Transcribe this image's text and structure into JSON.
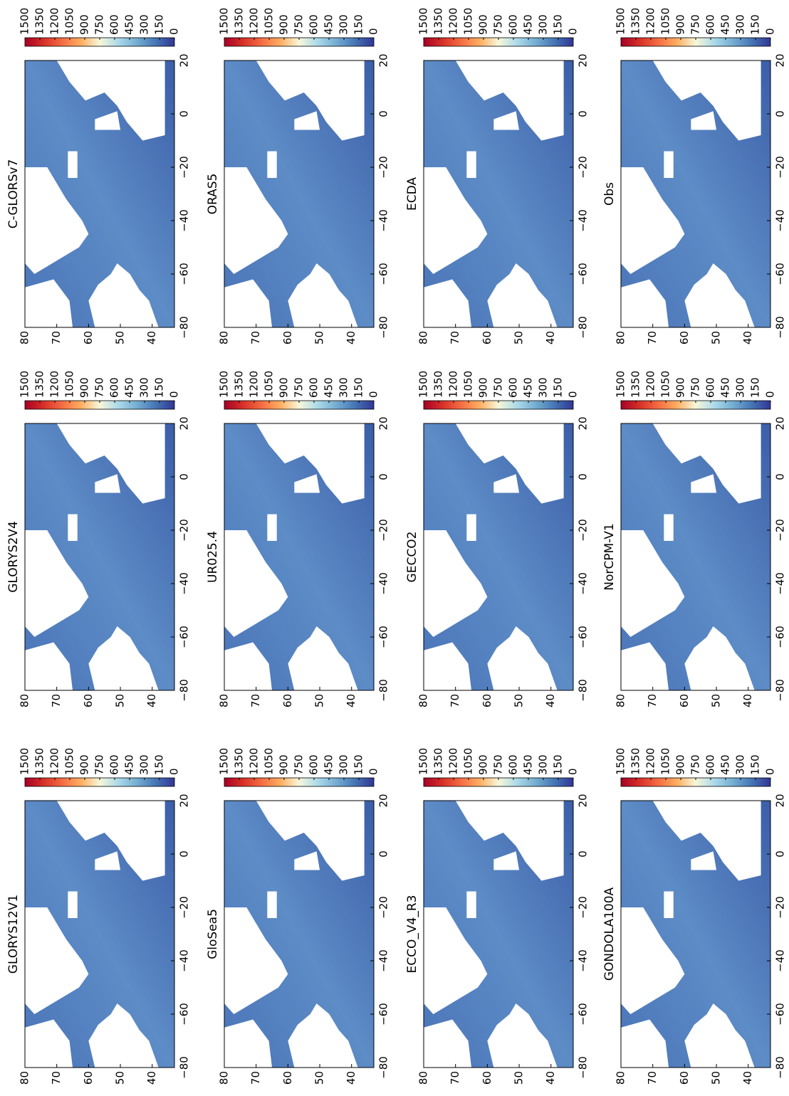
{
  "chart_data": [
    {
      "type": "heatmap",
      "title": "GLORYS12V1",
      "xlim": [
        -80,
        20
      ],
      "ylim": [
        33,
        80
      ],
      "xticks": [
        {
          "value": -80,
          "label": "−80"
        },
        {
          "value": -60,
          "label": "−60"
        },
        {
          "value": -40,
          "label": "−40"
        },
        {
          "value": -20,
          "label": "−20"
        },
        0,
        20
      ],
      "yticks": [
        40,
        50,
        60,
        70,
        80
      ],
      "clim": [
        0,
        1500
      ],
      "cticks": [
        0,
        150,
        300,
        450,
        600,
        750,
        900,
        1050,
        1200,
        1350,
        1500
      ],
      "colorscale": [
        "#313695",
        "#4575b4",
        "#74add1",
        "#abd9e9",
        "#f7f7d9",
        "#fdae61",
        "#f46d43",
        "#d73027",
        "#a50026"
      ]
    },
    {
      "type": "heatmap",
      "title": "GLORYS2V4",
      "xlim": [
        -80,
        20
      ],
      "ylim": [
        33,
        80
      ],
      "xticks": [
        {
          "value": -80,
          "label": "−80"
        },
        {
          "value": -60,
          "label": "−60"
        },
        {
          "value": -40,
          "label": "−40"
        },
        {
          "value": -20,
          "label": "−20"
        },
        0,
        20
      ],
      "yticks": [
        40,
        50,
        60,
        70,
        80
      ],
      "clim": [
        0,
        1500
      ],
      "cticks": [
        0,
        150,
        300,
        450,
        600,
        750,
        900,
        1050,
        1200,
        1350,
        1500
      ],
      "colorscale": [
        "#313695",
        "#4575b4",
        "#74add1",
        "#abd9e9",
        "#f7f7d9",
        "#fdae61",
        "#f46d43",
        "#d73027",
        "#a50026"
      ]
    },
    {
      "type": "heatmap",
      "title": "C-GLORSv7",
      "xlim": [
        -80,
        20
      ],
      "ylim": [
        33,
        80
      ],
      "xticks": [
        {
          "value": -80,
          "label": "−80"
        },
        {
          "value": -60,
          "label": "−60"
        },
        {
          "value": -40,
          "label": "−40"
        },
        {
          "value": -20,
          "label": "−20"
        },
        0,
        20
      ],
      "yticks": [
        40,
        50,
        60,
        70,
        80
      ],
      "clim": [
        0,
        1500
      ],
      "cticks": [
        0,
        150,
        300,
        450,
        600,
        750,
        900,
        1050,
        1200,
        1350,
        1500
      ],
      "colorscale": [
        "#313695",
        "#4575b4",
        "#74add1",
        "#abd9e9",
        "#f7f7d9",
        "#fdae61",
        "#f46d43",
        "#d73027",
        "#a50026"
      ]
    },
    {
      "type": "heatmap",
      "title": "GloSea5",
      "xlim": [
        -80,
        20
      ],
      "ylim": [
        33,
        80
      ],
      "xticks": [
        {
          "value": -80,
          "label": "−80"
        },
        {
          "value": -60,
          "label": "−60"
        },
        {
          "value": -40,
          "label": "−40"
        },
        {
          "value": -20,
          "label": "−20"
        },
        0,
        20
      ],
      "yticks": [
        40,
        50,
        60,
        70,
        80
      ],
      "clim": [
        0,
        1500
      ],
      "cticks": [
        0,
        150,
        300,
        450,
        600,
        750,
        900,
        1050,
        1200,
        1350,
        1500
      ],
      "colorscale": [
        "#313695",
        "#4575b4",
        "#74add1",
        "#abd9e9",
        "#f7f7d9",
        "#fdae61",
        "#f46d43",
        "#d73027",
        "#a50026"
      ]
    },
    {
      "type": "heatmap",
      "title": "UR025.4",
      "xlim": [
        -80,
        20
      ],
      "ylim": [
        33,
        80
      ],
      "xticks": [
        {
          "value": -80,
          "label": "−80"
        },
        {
          "value": -60,
          "label": "−60"
        },
        {
          "value": -40,
          "label": "−40"
        },
        {
          "value": -20,
          "label": "−20"
        },
        0,
        20
      ],
      "yticks": [
        40,
        50,
        60,
        70,
        80
      ],
      "clim": [
        0,
        1500
      ],
      "cticks": [
        0,
        150,
        300,
        450,
        600,
        750,
        900,
        1050,
        1200,
        1350,
        1500
      ],
      "colorscale": [
        "#313695",
        "#4575b4",
        "#74add1",
        "#abd9e9",
        "#f7f7d9",
        "#fdae61",
        "#f46d43",
        "#d73027",
        "#a50026"
      ]
    },
    {
      "type": "heatmap",
      "title": "ORAS5",
      "xlim": [
        -80,
        20
      ],
      "ylim": [
        33,
        80
      ],
      "xticks": [
        {
          "value": -80,
          "label": "−80"
        },
        {
          "value": -60,
          "label": "−60"
        },
        {
          "value": -40,
          "label": "−40"
        },
        {
          "value": -20,
          "label": "−20"
        },
        0,
        20
      ],
      "yticks": [
        40,
        50,
        60,
        70,
        80
      ],
      "clim": [
        0,
        1500
      ],
      "cticks": [
        0,
        150,
        300,
        450,
        600,
        750,
        900,
        1050,
        1200,
        1350,
        1500
      ],
      "colorscale": [
        "#313695",
        "#4575b4",
        "#74add1",
        "#abd9e9",
        "#f7f7d9",
        "#fdae61",
        "#f46d43",
        "#d73027",
        "#a50026"
      ]
    },
    {
      "type": "heatmap",
      "title": "ECCO_V4_R3",
      "xlim": [
        -80,
        20
      ],
      "ylim": [
        33,
        80
      ],
      "xticks": [
        {
          "value": -80,
          "label": "−80"
        },
        {
          "value": -60,
          "label": "−60"
        },
        {
          "value": -40,
          "label": "−40"
        },
        {
          "value": -20,
          "label": "−20"
        },
        0,
        20
      ],
      "yticks": [
        40,
        50,
        60,
        70,
        80
      ],
      "clim": [
        0,
        1500
      ],
      "cticks": [
        0,
        150,
        300,
        450,
        600,
        750,
        900,
        1050,
        1200,
        1350,
        1500
      ],
      "colorscale": [
        "#313695",
        "#4575b4",
        "#74add1",
        "#abd9e9",
        "#f7f7d9",
        "#fdae61",
        "#f46d43",
        "#d73027",
        "#a50026"
      ]
    },
    {
      "type": "heatmap",
      "title": "GECCO2",
      "xlim": [
        -80,
        20
      ],
      "ylim": [
        33,
        80
      ],
      "xticks": [
        {
          "value": -80,
          "label": "−80"
        },
        {
          "value": -60,
          "label": "−60"
        },
        {
          "value": -40,
          "label": "−40"
        },
        {
          "value": -20,
          "label": "−20"
        },
        0,
        20
      ],
      "yticks": [
        40,
        50,
        60,
        70,
        80
      ],
      "clim": [
        0,
        1500
      ],
      "cticks": [
        0,
        150,
        300,
        450,
        600,
        750,
        900,
        1050,
        1200,
        1350,
        1500
      ],
      "colorscale": [
        "#313695",
        "#4575b4",
        "#74add1",
        "#abd9e9",
        "#f7f7d9",
        "#fdae61",
        "#f46d43",
        "#d73027",
        "#a50026"
      ]
    },
    {
      "type": "heatmap",
      "title": "ECDA",
      "xlim": [
        -80,
        20
      ],
      "ylim": [
        33,
        80
      ],
      "xticks": [
        {
          "value": -80,
          "label": "−80"
        },
        {
          "value": -60,
          "label": "−60"
        },
        {
          "value": -40,
          "label": "−40"
        },
        {
          "value": -20,
          "label": "−20"
        },
        0,
        20
      ],
      "yticks": [
        40,
        50,
        60,
        70,
        80
      ],
      "clim": [
        0,
        1500
      ],
      "cticks": [
        0,
        150,
        300,
        450,
        600,
        750,
        900,
        1050,
        1200,
        1350,
        1500
      ],
      "colorscale": [
        "#313695",
        "#4575b4",
        "#74add1",
        "#abd9e9",
        "#f7f7d9",
        "#fdae61",
        "#f46d43",
        "#d73027",
        "#a50026"
      ]
    },
    {
      "type": "heatmap",
      "title": "GONDOLA100A",
      "xlim": [
        -80,
        20
      ],
      "ylim": [
        33,
        80
      ],
      "xticks": [
        {
          "value": -80,
          "label": "−80"
        },
        {
          "value": -60,
          "label": "−60"
        },
        {
          "value": -40,
          "label": "−40"
        },
        {
          "value": -20,
          "label": "−20"
        },
        0,
        20
      ],
      "yticks": [
        40,
        50,
        60,
        70,
        80
      ],
      "clim": [
        0,
        1500
      ],
      "cticks": [
        0,
        150,
        300,
        450,
        600,
        750,
        900,
        1050,
        1200,
        1350,
        1500
      ],
      "colorscale": [
        "#313695",
        "#4575b4",
        "#74add1",
        "#abd9e9",
        "#f7f7d9",
        "#fdae61",
        "#f46d43",
        "#d73027",
        "#a50026"
      ]
    },
    {
      "type": "heatmap",
      "title": "NorCPM-V1",
      "xlim": [
        -80,
        20
      ],
      "ylim": [
        33,
        80
      ],
      "xticks": [
        {
          "value": -80,
          "label": "−80"
        },
        {
          "value": -60,
          "label": "−60"
        },
        {
          "value": -40,
          "label": "−40"
        },
        {
          "value": -20,
          "label": "−20"
        },
        0,
        20
      ],
      "yticks": [
        40,
        50,
        60,
        70,
        80
      ],
      "clim": [
        0,
        1500
      ],
      "cticks": [
        0,
        150,
        300,
        450,
        600,
        750,
        900,
        1050,
        1200,
        1350,
        1500
      ],
      "colorscale": [
        "#313695",
        "#4575b4",
        "#74add1",
        "#abd9e9",
        "#f7f7d9",
        "#fdae61",
        "#f46d43",
        "#d73027",
        "#a50026"
      ]
    },
    {
      "type": "heatmap",
      "title": "Obs",
      "xlim": [
        -80,
        20
      ],
      "ylim": [
        33,
        80
      ],
      "xticks": [
        {
          "value": -80,
          "label": "−80"
        },
        {
          "value": -60,
          "label": "−60"
        },
        {
          "value": -40,
          "label": "−40"
        },
        {
          "value": -20,
          "label": "−20"
        },
        0,
        20
      ],
      "yticks": [
        40,
        50,
        60,
        70,
        80
      ],
      "clim": [
        0,
        1500
      ],
      "cticks": [
        0,
        150,
        300,
        450,
        600,
        750,
        900,
        1050,
        1200,
        1350,
        1500
      ],
      "colorscale": [
        "#313695",
        "#4575b4",
        "#74add1",
        "#abd9e9",
        "#f7f7d9",
        "#fdae61",
        "#f46d43",
        "#d73027",
        "#a50026"
      ]
    }
  ]
}
